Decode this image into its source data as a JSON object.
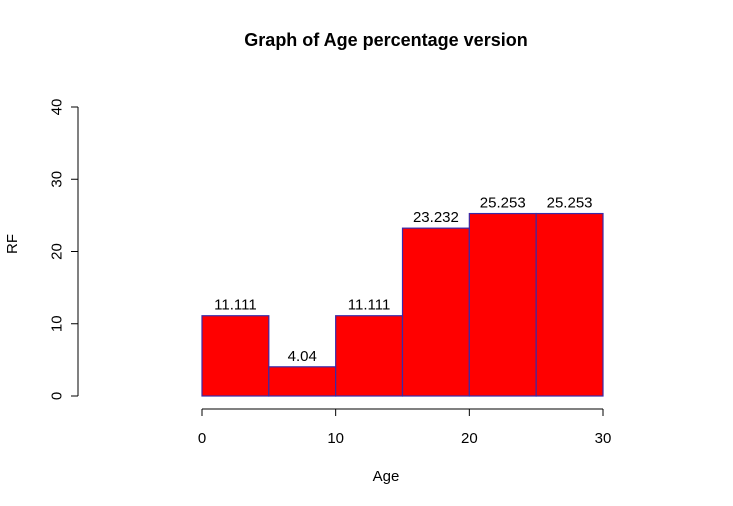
{
  "chart_data": {
    "type": "bar",
    "title": "Graph of Age percentage version",
    "xlabel": "Age",
    "ylabel": "RF",
    "bins": [
      [
        0,
        5
      ],
      [
        5,
        10
      ],
      [
        10,
        15
      ],
      [
        15,
        20
      ],
      [
        20,
        25
      ],
      [
        25,
        30
      ]
    ],
    "values": [
      11.111,
      4.04,
      11.111,
      23.232,
      25.253,
      25.253
    ],
    "data_labels": [
      "11.111",
      "4.04",
      "11.111",
      "23.232",
      "25.253",
      "25.253"
    ],
    "xlim": [
      0,
      30
    ],
    "ylim": [
      0,
      40
    ],
    "x_ticks": [
      0,
      10,
      20,
      30
    ],
    "y_ticks": [
      0,
      10,
      20,
      30,
      40
    ],
    "bar_fill": "#ff0000",
    "bar_border": "#3a2aa8",
    "grid": false,
    "legend": "none"
  }
}
